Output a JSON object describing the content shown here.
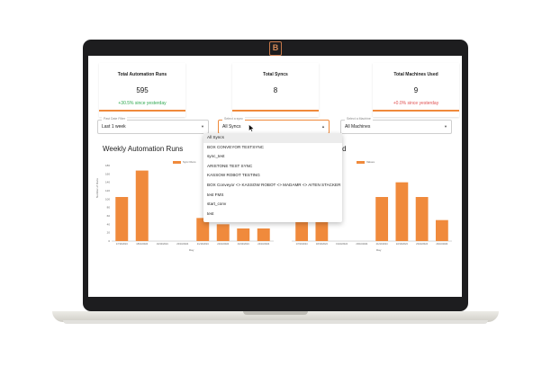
{
  "cards": [
    {
      "title": "Total Automation Runs",
      "value": "595",
      "change": "+30.5% since yesterday",
      "change_color": "#2fa84f"
    },
    {
      "title": "Total Syncs",
      "value": "8",
      "change": "",
      "change_color": "#2fa84f"
    },
    {
      "title": "Total Machines Used",
      "value": "9",
      "change": "+0.0% since yesterday",
      "change_color": "#e05050"
    }
  ],
  "filters": {
    "date": {
      "label": "Past Date Filter",
      "value": "Last 1 week"
    },
    "sync": {
      "label": "Select a sync",
      "value": "All Syncs"
    },
    "machine": {
      "label": "Select a Machine",
      "value": "All Machines"
    }
  },
  "sync_options": [
    "All Syncs",
    "BOX CONVEYOR TESTSYNC",
    "sync_test",
    "ARISTONE TEST SYNC",
    "KASSOW ROBOT TESTING",
    "BOX Conveyor <> KASSOW ROBOT <> MADAMR <> AITEN STACKER",
    "test FMS",
    "start_conv",
    "test"
  ],
  "charts": {
    "left_title": "Weekly Automation Runs",
    "left_legend": "Sync Runs",
    "right_title_partial": "uted",
    "right_legend": "Values",
    "xlabel": "Day",
    "ylabel": "Number of Runs"
  },
  "accent": "#f08a3c",
  "brand_icon": "b-logo-icon",
  "chart_data": [
    {
      "type": "bar",
      "title": "Weekly Automation Runs",
      "xlabel": "Day",
      "ylabel": "Number of Runs",
      "categories": [
        "17/10/2024",
        "18/10/2024",
        "19/10/2024",
        "20/10/2024",
        "21/10/2024",
        "22/10/2024",
        "23/10/2024",
        "24/10/2024"
      ],
      "series": [
        {
          "name": "Sync Runs",
          "values": [
            105,
            168,
            0,
            0,
            55,
            40,
            30,
            30
          ]
        }
      ],
      "ylim": [
        0,
        180
      ],
      "yticks": [
        0,
        20,
        40,
        60,
        80,
        100,
        120,
        140,
        160,
        180
      ],
      "legend": "top-right"
    },
    {
      "type": "bar",
      "title": "",
      "categories": [
        "17/10/2024",
        "18/10/2024",
        "19/10/2024",
        "20/10/2024",
        "21/10/2024",
        "22/10/2024",
        "23/10/2024",
        "24/10/2024"
      ],
      "series": [
        {
          "name": "Values",
          "values": [
            100,
            95,
            0,
            0,
            105,
            140,
            105,
            50
          ]
        }
      ],
      "ylim": [
        0,
        180
      ],
      "legend": "top-right"
    }
  ]
}
